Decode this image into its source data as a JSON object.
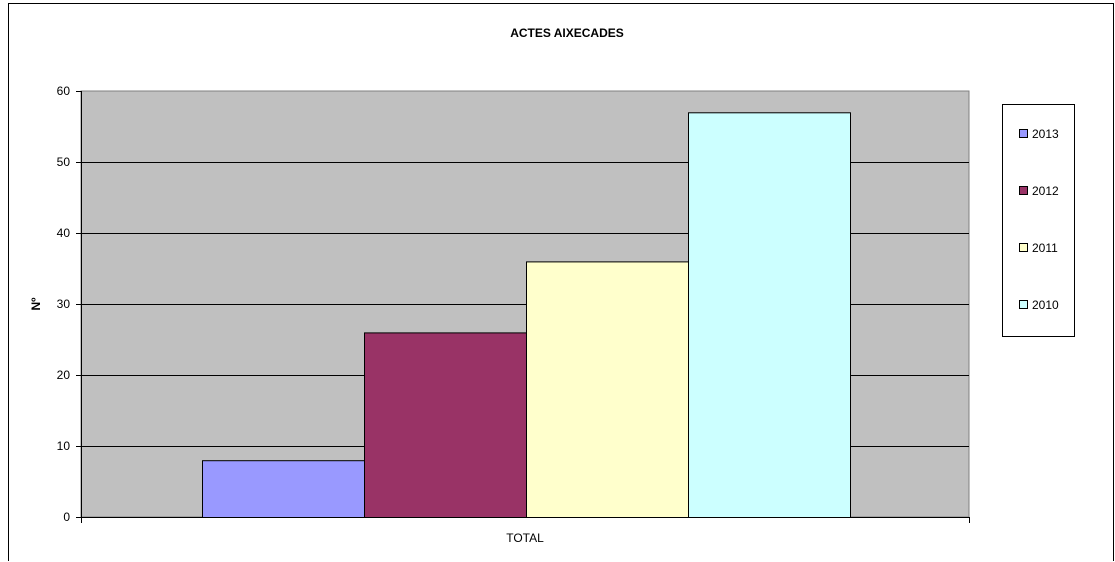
{
  "chart_data": {
    "type": "bar",
    "title": "ACTES AIXECADES",
    "xlabel": "",
    "ylabel": "Nº",
    "categories": [
      "TOTAL"
    ],
    "series": [
      {
        "name": "2013",
        "values": [
          8
        ],
        "color": "#9999ff"
      },
      {
        "name": "2012",
        "values": [
          26
        ],
        "color": "#993366"
      },
      {
        "name": "2011",
        "values": [
          36
        ],
        "color": "#ffffcc"
      },
      {
        "name": "2010",
        "values": [
          57
        ],
        "color": "#ccffff"
      }
    ],
    "ylim": [
      0,
      60
    ],
    "yticks": [
      "0",
      "10",
      "20",
      "30",
      "40",
      "50",
      "60"
    ],
    "grid": true,
    "plot_background": "#c0c0c0",
    "legend_position": "right"
  }
}
